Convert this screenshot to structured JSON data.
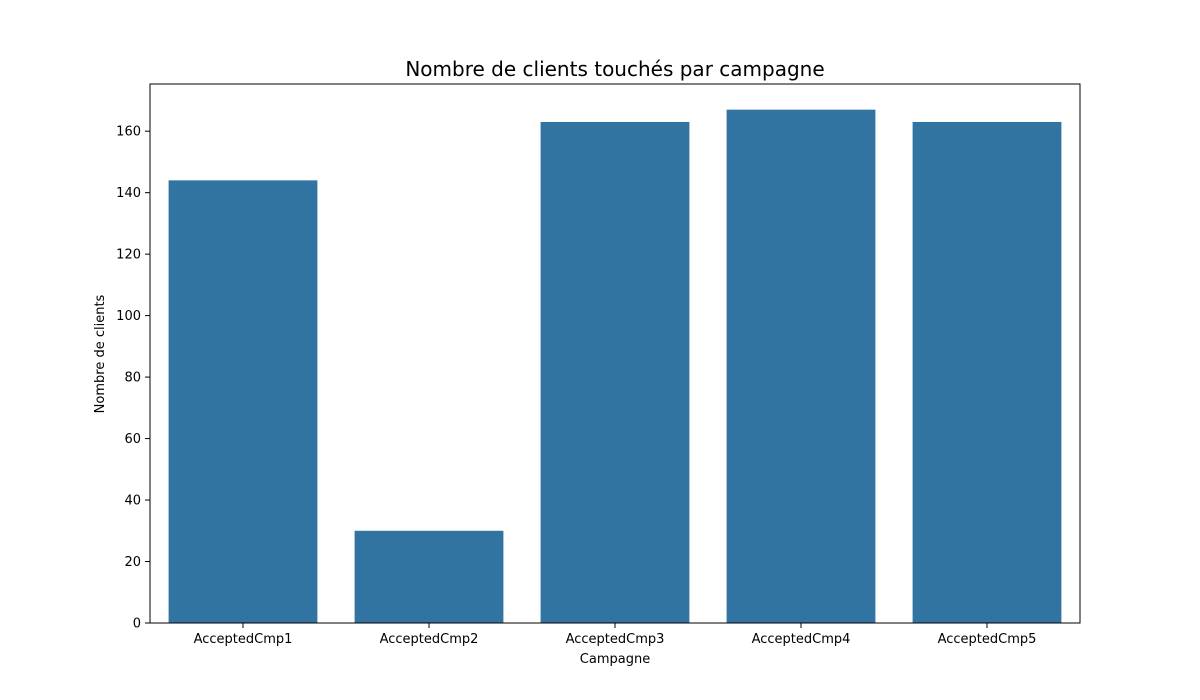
{
  "chart_data": {
    "type": "bar",
    "title": "Nombre de clients touchés par campagne",
    "xlabel": "Campagne",
    "ylabel": "Nombre de clients",
    "categories": [
      "AcceptedCmp1",
      "AcceptedCmp2",
      "AcceptedCmp3",
      "AcceptedCmp4",
      "AcceptedCmp5"
    ],
    "values": [
      144,
      30,
      163,
      167,
      163
    ],
    "ylim": [
      0,
      175.35
    ],
    "yticks": [
      0,
      20,
      40,
      60,
      80,
      100,
      120,
      140,
      160
    ],
    "bar_color": "#3274a1",
    "grid": false,
    "legend": false
  }
}
